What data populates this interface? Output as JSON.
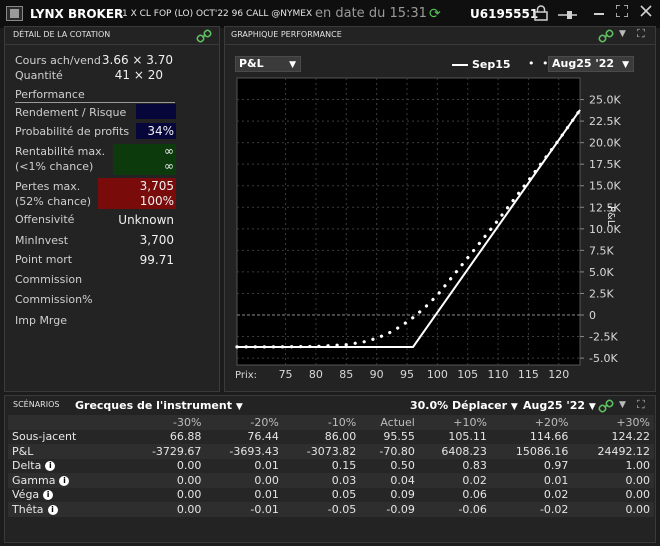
{
  "titlebar": {
    "app_title": "LYNX BROKER",
    "instrument": "1 X CL FOP (LO) OCT'22 96 CALL @NYMEX",
    "date": "en date du 15:31",
    "account": "U6195551"
  },
  "left_panel": {
    "header": "DÉTAIL DE LA COTATION",
    "rows": {
      "bid_ask_label": "Cours ach/vend",
      "bid_ask_value": "3.66 × 3.70",
      "qty_label": "Quantité",
      "qty_value": "41 × 20",
      "performance_label": "Performance",
      "risk_label": "Rendement / Risque",
      "prob_label": "Probabilité de profits",
      "prob_value": "34%",
      "maxprofit_label1": "Rentabilité max.",
      "maxprofit_label2": "(<1% chance)",
      "maxprofit_value1": "∞",
      "maxprofit_value2": "∞",
      "maxloss_label1": "Pertes max.",
      "maxloss_label2": "(52% chance)",
      "maxloss_value1": "3,705",
      "maxloss_value2": "100%",
      "offensive_label": "Offensivité",
      "offensive_value": "Unknown",
      "mininvest_label": "MinInvest",
      "mininvest_value": "3,700",
      "breakeven_label": "Point mort",
      "breakeven_value": "99.71",
      "commission_label": "Commission",
      "commission_pct_label": "Commission%",
      "impmrge_label": "Imp Mrge"
    }
  },
  "chart_panel": {
    "header": "GRAPHIQUE PERFORMANCE",
    "metric_dropdown": "P&L",
    "legend_solid": "Sep15",
    "legend_dotted": "Aug25 '22",
    "x_prefix": "Prix:",
    "y_axis_label": "P&L"
  },
  "chart_data": {
    "type": "line",
    "x_ticks": [
      75,
      80,
      85,
      90,
      95,
      100,
      105,
      110,
      115,
      120
    ],
    "y_ticks": [
      "25.0K",
      "22.5K",
      "20.0K",
      "17.5K",
      "15.0K",
      "12.5K",
      "10.0K",
      "7.5K",
      "5.0K",
      "2.5K",
      "0",
      "-2.5K",
      "-5.0K"
    ],
    "y_tick_values": [
      25000,
      22500,
      20000,
      17500,
      15000,
      12500,
      10000,
      7500,
      5000,
      2500,
      0,
      -2500,
      -5000
    ],
    "xlim": [
      67,
      123.5
    ],
    "ylim": [
      -5800,
      27500
    ],
    "xlabel": "Prix:",
    "ylabel": "P&L",
    "series": [
      {
        "name": "Sep15",
        "style": "solid",
        "x": [
          67,
          96,
          123.5
        ],
        "y": [
          -3705,
          -3705,
          23795
        ]
      },
      {
        "name": "Aug25 '22",
        "style": "dotted",
        "x": [
          67,
          70,
          75,
          80,
          85,
          88,
          90,
          92,
          94,
          96,
          98,
          100,
          103,
          106,
          110,
          115,
          120,
          123.5
        ],
        "y": [
          -3700,
          -3700,
          -3690,
          -3650,
          -3450,
          -3100,
          -2700,
          -2100,
          -1300,
          -300,
          900,
          2300,
          4900,
          7500,
          11000,
          15600,
          20300,
          23800
        ]
      }
    ]
  },
  "scenarios": {
    "header": "SCÉNARIOS",
    "greeks_dropdown": "Grecques de l'instrument",
    "shift_dropdown": "30.0% Déplacer",
    "date_dropdown": "Aug25 '22",
    "columns": [
      "",
      "-30%",
      "-20%",
      "-10%",
      "Actuel",
      "+10%",
      "+20%",
      "+30%"
    ],
    "rows": [
      {
        "label": "Sous-jacent",
        "info": false,
        "values": [
          "66.88",
          "76.44",
          "86.00",
          "95.55",
          "105.11",
          "114.66",
          "124.22"
        ]
      },
      {
        "label": "P&L",
        "info": false,
        "values": [
          "-3729.67",
          "-3693.43",
          "-3073.82",
          "-70.80",
          "6408.23",
          "15086.16",
          "24492.12"
        ]
      },
      {
        "label": "Delta",
        "info": true,
        "values": [
          "0.00",
          "0.01",
          "0.15",
          "0.50",
          "0.83",
          "0.97",
          "1.00"
        ]
      },
      {
        "label": "Gamma",
        "info": true,
        "values": [
          "0.00",
          "0.00",
          "0.03",
          "0.04",
          "0.02",
          "0.01",
          "0.00"
        ]
      },
      {
        "label": "Véga",
        "info": true,
        "values": [
          "0.00",
          "0.01",
          "0.05",
          "0.09",
          "0.06",
          "0.02",
          "0.00"
        ]
      },
      {
        "label": "Thêta",
        "info": true,
        "values": [
          "0.00",
          "-0.01",
          "-0.05",
          "-0.09",
          "-0.06",
          "-0.02",
          "0.00"
        ]
      }
    ]
  },
  "colors": {
    "profit_green": "#0c3a0c",
    "loss_red": "#7a0b0b",
    "risk_navy": "#06063a",
    "link_green": "#5fc05f"
  }
}
